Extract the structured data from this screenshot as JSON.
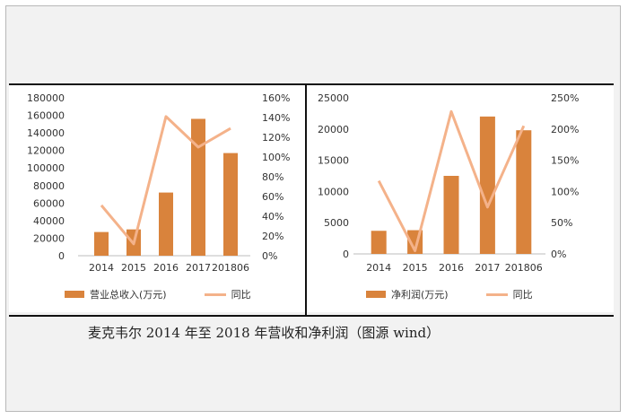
{
  "caption": "麦克韦尔 2014 年至 2018 年营收和净利润（图源 wind）",
  "colors": {
    "bar": "#d9833c",
    "line": "#f4b28a",
    "axis": "#bdbdbd",
    "text": "#333333"
  },
  "chart_data": [
    {
      "type": "bar+line",
      "categories": [
        "2014",
        "2015",
        "2016",
        "2017",
        "201806"
      ],
      "series": [
        {
          "name": "营业总收入(万元)",
          "type": "bar",
          "axis": "left",
          "values": [
            27000,
            30000,
            72000,
            156000,
            117000
          ]
        },
        {
          "name": "同比",
          "type": "line",
          "axis": "right",
          "values": [
            51,
            12,
            141,
            110,
            129
          ]
        }
      ],
      "ylim_left": [
        0,
        180000
      ],
      "yticks_left": [
        "0",
        "20000",
        "40000",
        "60000",
        "80000",
        "100000",
        "120000",
        "140000",
        "160000",
        "180000"
      ],
      "ylim_right": [
        0,
        160
      ],
      "yticks_right": [
        "0%",
        "20%",
        "40%",
        "60%",
        "80%",
        "100%",
        "120%",
        "140%",
        "160%"
      ],
      "legend_position": "bottom",
      "grid": false
    },
    {
      "type": "bar+line",
      "categories": [
        "2014",
        "2015",
        "2016",
        "2017",
        "201806"
      ],
      "series": [
        {
          "name": "净利润(万元)",
          "type": "bar",
          "axis": "left",
          "values": [
            3700,
            3800,
            12500,
            22000,
            19800
          ]
        },
        {
          "name": "同比",
          "type": "line",
          "axis": "right",
          "values": [
            117,
            5,
            228,
            75,
            205
          ]
        }
      ],
      "ylim_left": [
        0,
        25000
      ],
      "yticks_left": [
        "0",
        "5000",
        "10000",
        "15000",
        "20000",
        "25000"
      ],
      "ylim_right": [
        0,
        250
      ],
      "yticks_right": [
        "0%",
        "50%",
        "100%",
        "150%",
        "200%",
        "250%"
      ],
      "legend_position": "bottom",
      "grid": false
    }
  ]
}
